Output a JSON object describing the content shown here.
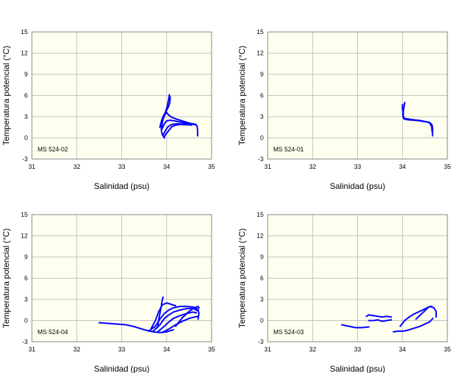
{
  "colors": {
    "plot_bg": "#fffff0",
    "grid": "#c0c0c0",
    "marker": "#0000ff",
    "axis": "#808080"
  },
  "chart_data": [
    {
      "type": "scatter",
      "station": "MS 524-02",
      "xlabel": "Salinidad (psu)",
      "ylabel": "Temperatura potencial (°C)",
      "xlim": [
        31,
        35
      ],
      "ylim": [
        -3,
        15
      ],
      "xticks": [
        "31",
        "32",
        "33",
        "34",
        "35"
      ],
      "yticks": [
        "-3",
        "0",
        "3",
        "6",
        "9",
        "12",
        "15"
      ],
      "series": [
        {
          "name": "MS 524-02",
          "segments": [
            [
              [
                33.95,
                0.0
              ],
              [
                33.9,
                0.5
              ],
              [
                33.88,
                1.2
              ],
              [
                33.9,
                2.0
              ],
              [
                33.92,
                2.6
              ],
              [
                33.95,
                3.1
              ],
              [
                33.97,
                3.6
              ],
              [
                33.99,
                4.0
              ],
              [
                34.01,
                4.4
              ],
              [
                34.03,
                5.0
              ],
              [
                34.05,
                5.6
              ],
              [
                34.06,
                6.1
              ]
            ],
            [
              [
                33.92,
                3.0
              ],
              [
                33.96,
                3.3
              ],
              [
                34.0,
                3.6
              ],
              [
                34.05,
                3.2
              ],
              [
                34.12,
                2.9
              ],
              [
                34.2,
                2.7
              ],
              [
                34.3,
                2.5
              ],
              [
                34.4,
                2.3
              ],
              [
                34.5,
                2.1
              ],
              [
                34.58,
                2.0
              ],
              [
                34.65,
                1.9
              ],
              [
                34.68,
                1.6
              ],
              [
                34.69,
                1.0
              ],
              [
                34.69,
                0.3
              ]
            ],
            [
              [
                33.9,
                1.3
              ],
              [
                33.95,
                2.0
              ],
              [
                34.0,
                2.4
              ],
              [
                34.08,
                2.5
              ],
              [
                34.18,
                2.4
              ],
              [
                34.3,
                2.25
              ],
              [
                34.42,
                2.1
              ],
              [
                34.55,
                1.95
              ],
              [
                34.65,
                1.85
              ]
            ],
            [
              [
                33.92,
                0.4
              ],
              [
                33.97,
                1.0
              ],
              [
                34.02,
                1.5
              ],
              [
                34.08,
                1.8
              ],
              [
                34.15,
                1.95
              ],
              [
                34.25,
                2.0
              ],
              [
                34.35,
                1.95
              ],
              [
                34.45,
                1.9
              ],
              [
                34.55,
                1.8
              ]
            ],
            [
              [
                33.94,
                0.1
              ],
              [
                33.98,
                0.5
              ],
              [
                34.03,
                0.9
              ],
              [
                34.08,
                1.3
              ],
              [
                34.12,
                1.6
              ],
              [
                34.2,
                1.8
              ],
              [
                34.3,
                1.9
              ],
              [
                34.45,
                1.85
              ]
            ],
            [
              [
                33.85,
                1.5
              ],
              [
                33.88,
                2.3
              ],
              [
                33.92,
                3.0
              ],
              [
                33.96,
                3.5
              ],
              [
                34.0,
                3.9
              ],
              [
                34.04,
                4.4
              ],
              [
                34.07,
                5.0
              ],
              [
                34.08,
                5.8
              ]
            ]
          ]
        }
      ]
    },
    {
      "type": "scatter",
      "station": "MS 524-01",
      "xlabel": "Salinidad (psu)",
      "ylabel": "Temperatura potencial (°C)",
      "xlim": [
        31,
        35
      ],
      "ylim": [
        -3,
        15
      ],
      "xticks": [
        "31",
        "32",
        "33",
        "34",
        "35"
      ],
      "yticks": [
        "-3",
        "0",
        "3",
        "6",
        "9",
        "12",
        "15"
      ],
      "series": [
        {
          "name": "MS 524-01",
          "segments": [
            [
              [
                34.05,
                5.0
              ],
              [
                34.04,
                4.6
              ],
              [
                34.03,
                4.2
              ],
              [
                34.02,
                3.8
              ],
              [
                34.02,
                3.4
              ],
              [
                34.02,
                3.0
              ],
              [
                34.03,
                2.7
              ],
              [
                34.08,
                2.6
              ],
              [
                34.15,
                2.55
              ],
              [
                34.25,
                2.5
              ],
              [
                34.35,
                2.45
              ],
              [
                34.45,
                2.35
              ],
              [
                34.55,
                2.25
              ],
              [
                34.62,
                2.1
              ],
              [
                34.66,
                1.8
              ],
              [
                34.67,
                1.4
              ],
              [
                34.67,
                1.0
              ],
              [
                34.67,
                0.6
              ],
              [
                34.67,
                0.3
              ]
            ],
            [
              [
                34.0,
                4.7
              ],
              [
                34.0,
                4.2
              ],
              [
                34.01,
                3.6
              ],
              [
                34.01,
                3.0
              ],
              [
                34.05,
                2.75
              ],
              [
                34.2,
                2.6
              ],
              [
                34.4,
                2.45
              ],
              [
                34.6,
                2.2
              ],
              [
                34.65,
                1.6
              ],
              [
                34.66,
                0.9
              ]
            ]
          ]
        }
      ]
    },
    {
      "type": "scatter",
      "station": "MS 524-04",
      "xlabel": "Salinidad (psu)",
      "ylabel": "Temperatura potencial (°C)",
      "xlim": [
        31,
        35
      ],
      "ylim": [
        -3,
        15
      ],
      "xticks": [
        "31",
        "32",
        "33",
        "34",
        "35"
      ],
      "yticks": [
        "-3",
        "0",
        "3",
        "6",
        "9",
        "12",
        "15"
      ],
      "series": [
        {
          "name": "MS 524-04",
          "segments": [
            [
              [
                32.5,
                -0.3
              ],
              [
                32.7,
                -0.4
              ],
              [
                32.9,
                -0.5
              ],
              [
                33.1,
                -0.6
              ],
              [
                33.3,
                -0.9
              ],
              [
                33.5,
                -1.3
              ],
              [
                33.7,
                -1.6
              ],
              [
                33.85,
                -1.7
              ],
              [
                34.0,
                -1.6
              ],
              [
                34.15,
                -1.3
              ]
            ],
            [
              [
                33.8,
                -1.0
              ],
              [
                33.82,
                0.0
              ],
              [
                33.85,
                1.0
              ],
              [
                33.88,
                2.0
              ],
              [
                33.9,
                2.8
              ],
              [
                33.92,
                3.3
              ]
            ],
            [
              [
                33.6,
                -1.5
              ],
              [
                33.75,
                -0.8
              ],
              [
                33.85,
                0.2
              ],
              [
                33.95,
                1.0
              ],
              [
                34.05,
                1.5
              ],
              [
                34.15,
                1.8
              ],
              [
                34.3,
                2.0
              ],
              [
                34.45,
                2.0
              ],
              [
                34.6,
                1.9
              ],
              [
                34.7,
                1.6
              ],
              [
                34.72,
                1.0
              ],
              [
                34.7,
                0.2
              ]
            ],
            [
              [
                33.7,
                -1.5
              ],
              [
                33.85,
                -0.6
              ],
              [
                33.95,
                0.3
              ],
              [
                34.05,
                0.8
              ],
              [
                34.15,
                1.2
              ],
              [
                34.3,
                1.5
              ],
              [
                34.45,
                1.7
              ],
              [
                34.6,
                1.7
              ],
              [
                34.68,
                1.4
              ]
            ],
            [
              [
                33.8,
                -1.6
              ],
              [
                33.95,
                -0.8
              ],
              [
                34.05,
                -0.2
              ],
              [
                34.15,
                0.3
              ],
              [
                34.3,
                0.7
              ],
              [
                34.45,
                1.0
              ],
              [
                34.58,
                1.2
              ],
              [
                34.66,
                1.1
              ]
            ],
            [
              [
                33.9,
                -1.7
              ],
              [
                34.05,
                -1.2
              ],
              [
                34.2,
                -0.6
              ],
              [
                34.35,
                -0.1
              ],
              [
                34.5,
                0.3
              ],
              [
                34.62,
                0.5
              ],
              [
                34.7,
                0.6
              ]
            ],
            [
              [
                33.65,
                -1.2
              ],
              [
                33.75,
                0.0
              ],
              [
                33.82,
                1.2
              ],
              [
                33.9,
                2.2
              ],
              [
                34.0,
                2.5
              ],
              [
                34.1,
                2.3
              ],
              [
                34.2,
                2.1
              ]
            ],
            [
              [
                34.2,
                -0.8
              ],
              [
                34.35,
                0.4
              ],
              [
                34.5,
                1.3
              ],
              [
                34.62,
                1.8
              ],
              [
                34.7,
                2.0
              ],
              [
                34.72,
                1.8
              ]
            ]
          ]
        }
      ]
    },
    {
      "type": "scatter",
      "station": "MS 524-03",
      "xlabel": "Salinidad (psu)",
      "ylabel": "Temperatura potencial (°C)",
      "xlim": [
        31,
        35
      ],
      "ylim": [
        -3,
        15
      ],
      "xticks": [
        "31",
        "32",
        "33",
        "34",
        "35"
      ],
      "yticks": [
        "-3",
        "0",
        "3",
        "6",
        "9",
        "12",
        "15"
      ],
      "series": [
        {
          "name": "MS 524-03",
          "segments": [
            [
              [
                32.65,
                -0.6
              ],
              [
                32.8,
                -0.8
              ],
              [
                32.95,
                -1.0
              ],
              [
                33.1,
                -1.0
              ],
              [
                33.25,
                -0.9
              ]
            ],
            [
              [
                33.2,
                0.6
              ],
              [
                33.25,
                0.8
              ],
              [
                33.35,
                0.7
              ],
              [
                33.45,
                0.6
              ],
              [
                33.55,
                0.5
              ],
              [
                33.65,
                0.6
              ],
              [
                33.75,
                0.5
              ]
            ],
            [
              [
                33.25,
                0.0
              ],
              [
                33.35,
                0.0
              ],
              [
                33.45,
                0.1
              ],
              [
                33.55,
                -0.1
              ],
              [
                33.65,
                0.0
              ],
              [
                33.75,
                0.1
              ]
            ],
            [
              [
                33.8,
                -1.6
              ],
              [
                33.9,
                -1.5
              ],
              [
                34.0,
                -1.5
              ],
              [
                34.1,
                -1.4
              ],
              [
                34.2,
                -1.2
              ],
              [
                34.3,
                -1.0
              ],
              [
                34.4,
                -0.8
              ],
              [
                34.5,
                -0.5
              ],
              [
                34.6,
                -0.2
              ],
              [
                34.68,
                0.3
              ]
            ],
            [
              [
                33.95,
                -0.8
              ],
              [
                34.05,
                0.0
              ],
              [
                34.15,
                0.5
              ],
              [
                34.25,
                0.9
              ],
              [
                34.35,
                1.2
              ],
              [
                34.45,
                1.5
              ],
              [
                34.55,
                1.8
              ],
              [
                34.62,
                2.0
              ],
              [
                34.7,
                1.8
              ],
              [
                34.75,
                1.3
              ],
              [
                34.75,
                0.5
              ]
            ],
            [
              [
                34.3,
                0.2
              ],
              [
                34.4,
                0.8
              ],
              [
                34.5,
                1.4
              ],
              [
                34.58,
                1.9
              ],
              [
                34.65,
                2.0
              ]
            ]
          ]
        }
      ]
    }
  ]
}
